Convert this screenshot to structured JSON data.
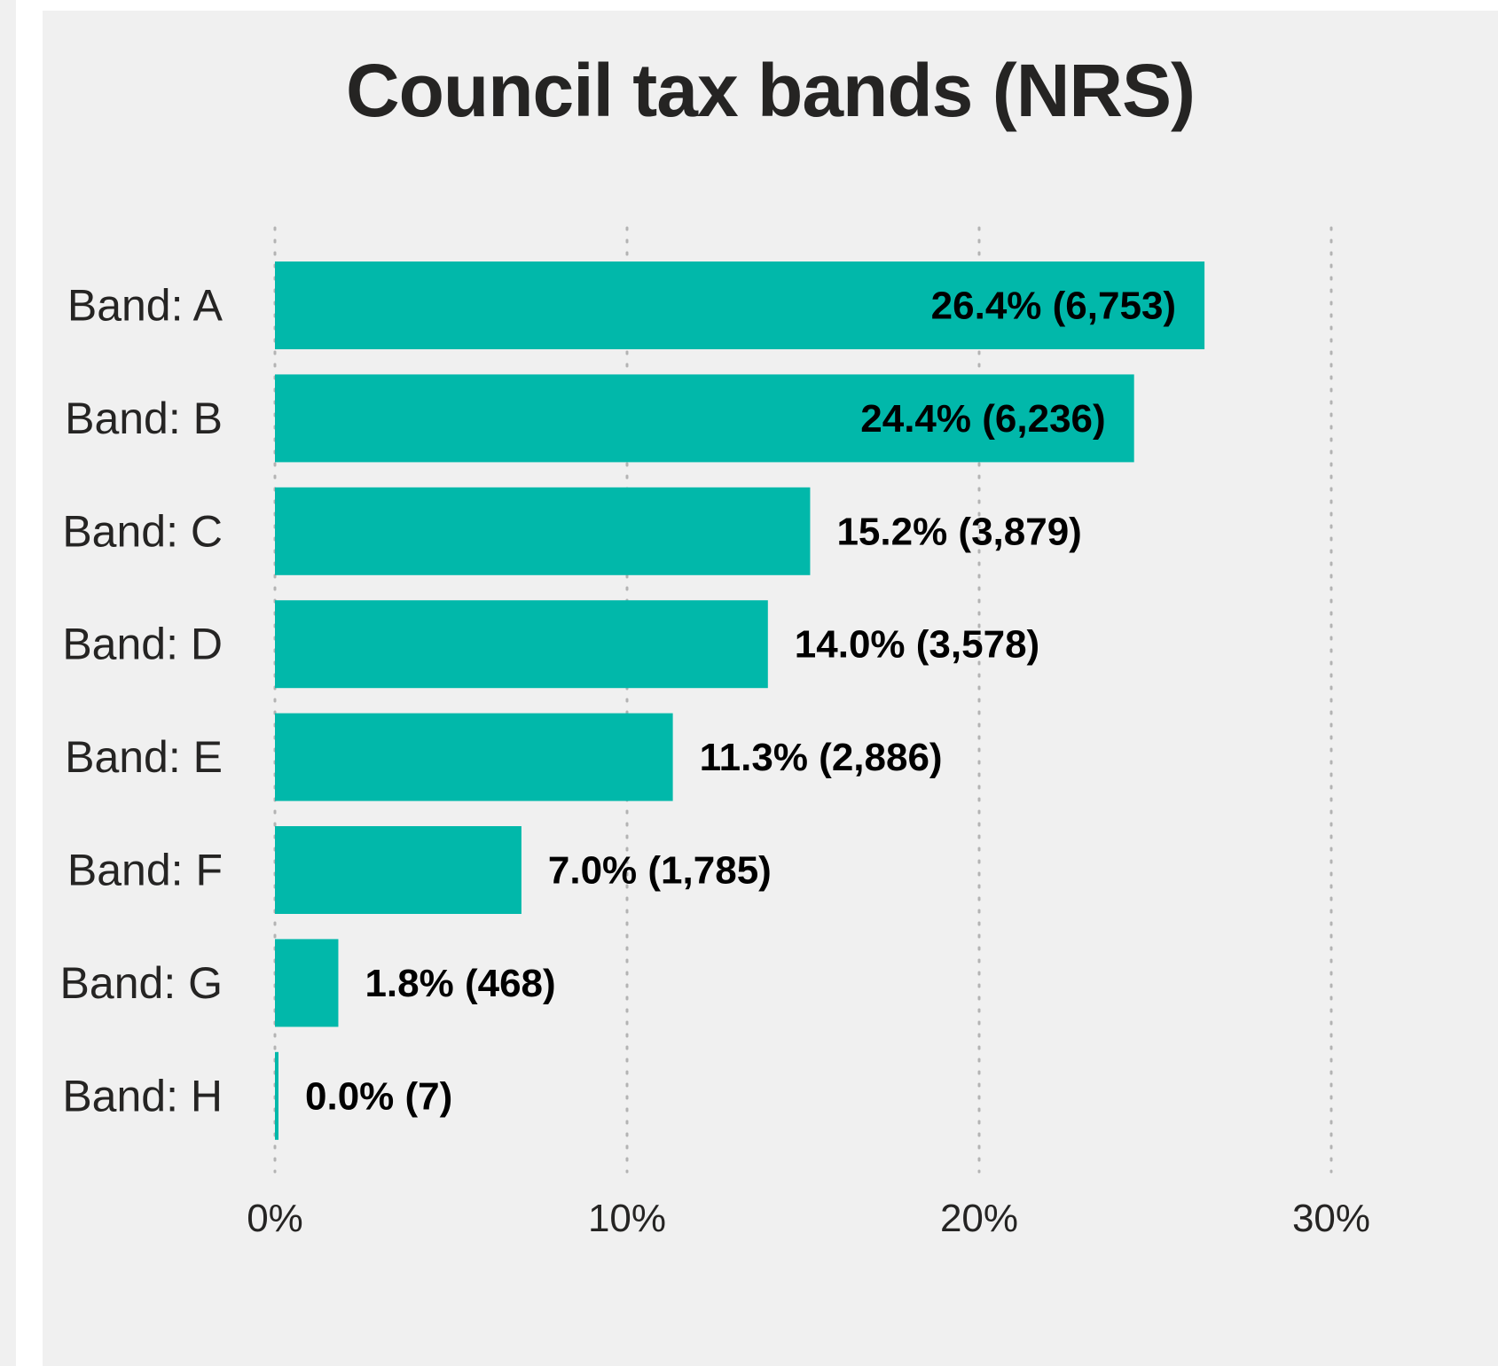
{
  "chart_data": {
    "type": "bar",
    "orientation": "horizontal",
    "title": "Council tax bands (NRS)",
    "categories": [
      "Band: A",
      "Band: B",
      "Band: C",
      "Band: D",
      "Band: E",
      "Band: F",
      "Band: G",
      "Band: H"
    ],
    "values": [
      26.4,
      24.4,
      15.2,
      14.0,
      11.3,
      7.0,
      1.8,
      0.0
    ],
    "counts": [
      "6,753",
      "6,236",
      "3,879",
      "3,578",
      "2,886",
      "1,785",
      "468",
      "7"
    ],
    "data_labels": [
      "26.4% (6,753)",
      "24.4% (6,236)",
      "15.2% (3,879)",
      "14.0% (3,578)",
      "11.3% (2,886)",
      "7.0% (1,785)",
      "1.8% (468)",
      "0.0% (7)"
    ],
    "xlim": [
      0,
      30
    ],
    "x_ticks": [
      0,
      10,
      20,
      30
    ],
    "x_tick_labels": [
      "0%",
      "10%",
      "20%",
      "30%"
    ],
    "grid": "vertical dotted",
    "bar_color": "#01b8aa",
    "background_color": "#f0f0f0"
  }
}
